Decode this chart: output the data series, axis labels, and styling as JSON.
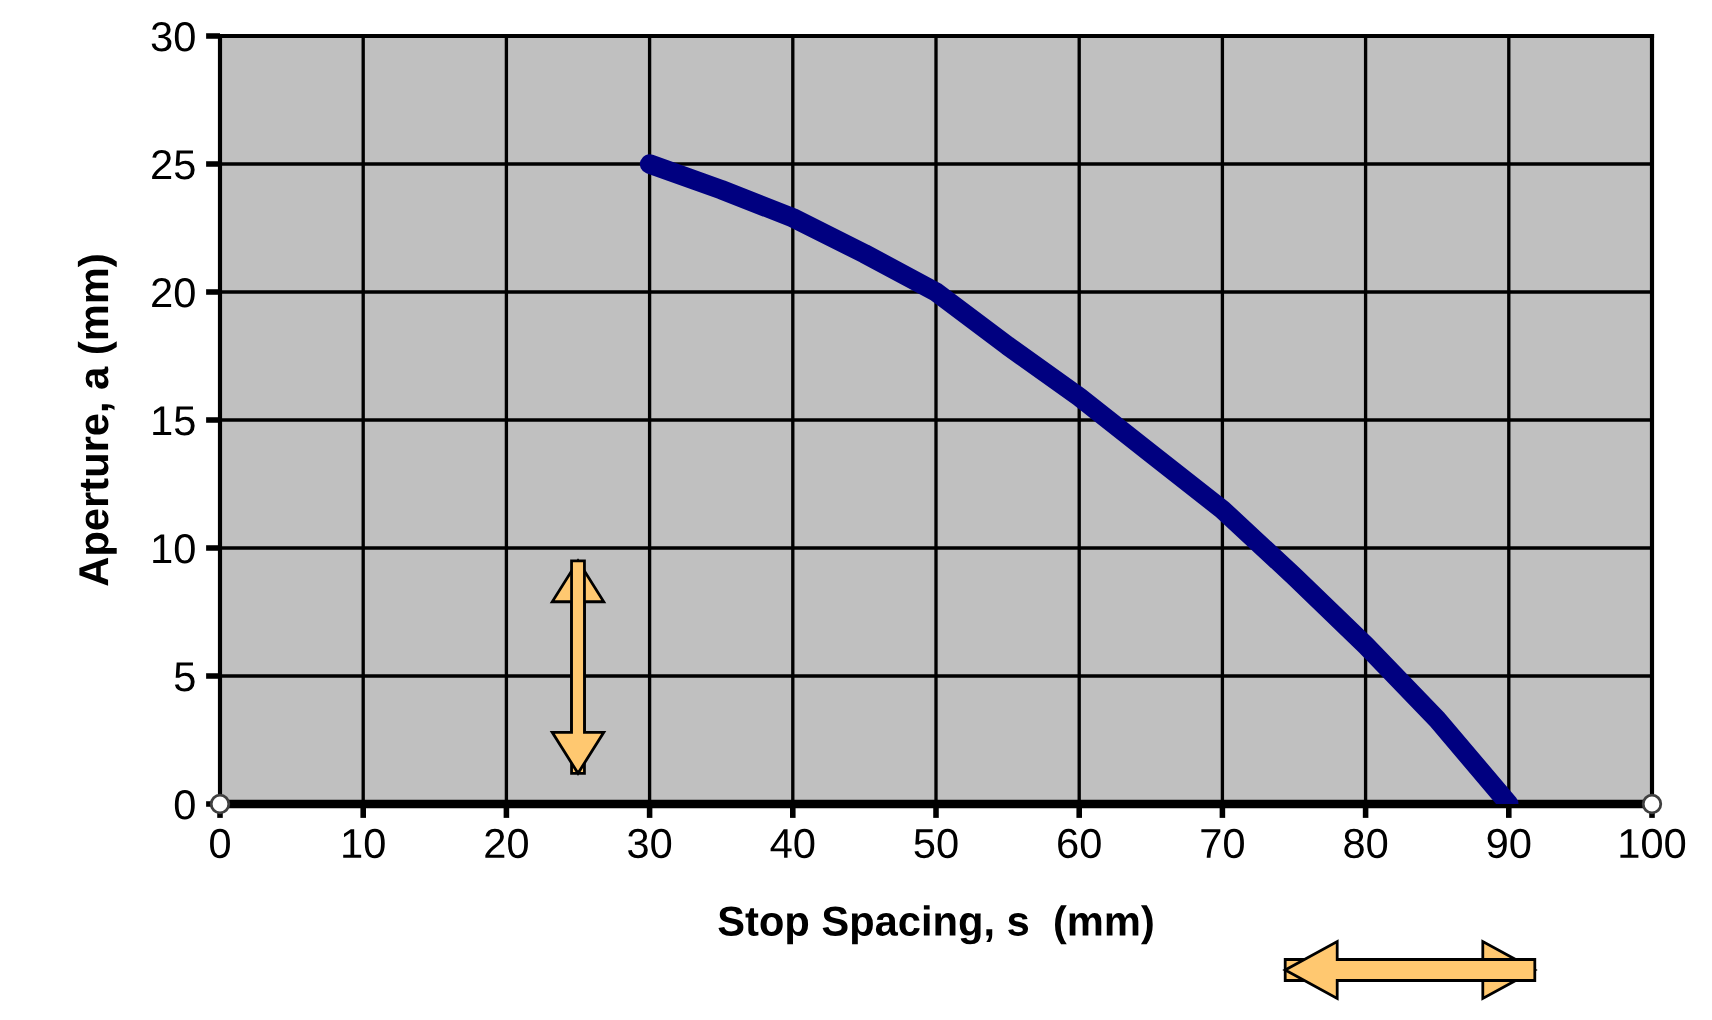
{
  "chart_data": {
    "type": "line",
    "xlabel": "Stop Spacing, s  (mm)",
    "ylabel": "Aperture, a (mm)",
    "series": [
      {
        "color": "#000080",
        "x": [
          30,
          35,
          40,
          45,
          50,
          55,
          60,
          65,
          70,
          75,
          80,
          85,
          90
        ],
        "values": [
          25,
          24,
          22.9,
          21.5,
          20,
          17.9,
          15.9,
          13.7,
          11.5,
          8.9,
          6.2,
          3.3,
          0
        ]
      },
      {
        "type": "scatter",
        "color": "#ffffff",
        "marker": "circle",
        "x": [
          0,
          100
        ],
        "values": [
          0,
          0
        ]
      }
    ],
    "xlim": [
      0,
      100
    ],
    "xticks": [
      0,
      10,
      20,
      30,
      40,
      50,
      60,
      70,
      80,
      90,
      100
    ],
    "ylim": [
      0,
      30
    ],
    "yticks": [
      0,
      5,
      10,
      15,
      20,
      25,
      30
    ],
    "grid": true,
    "legend": false
  }
}
